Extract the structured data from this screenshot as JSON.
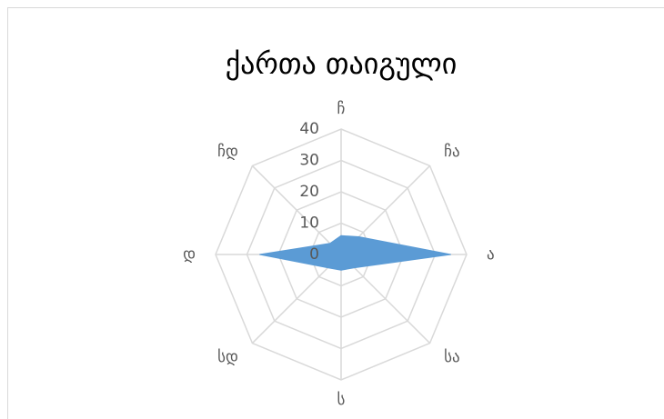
{
  "chart_data": {
    "type": "radar",
    "title": "ქართა თაიგული",
    "categories": [
      "ჩ",
      "ჩა",
      "ა",
      "სა",
      "ს",
      "სდ",
      "დ",
      "ჩდ"
    ],
    "values": [
      6,
      8,
      35,
      6,
      5,
      6,
      26,
      5
    ],
    "color": "#5b9bd5",
    "ylim": [
      0,
      40
    ],
    "yticks": [
      0,
      10,
      20,
      30,
      40
    ],
    "grid": true
  }
}
